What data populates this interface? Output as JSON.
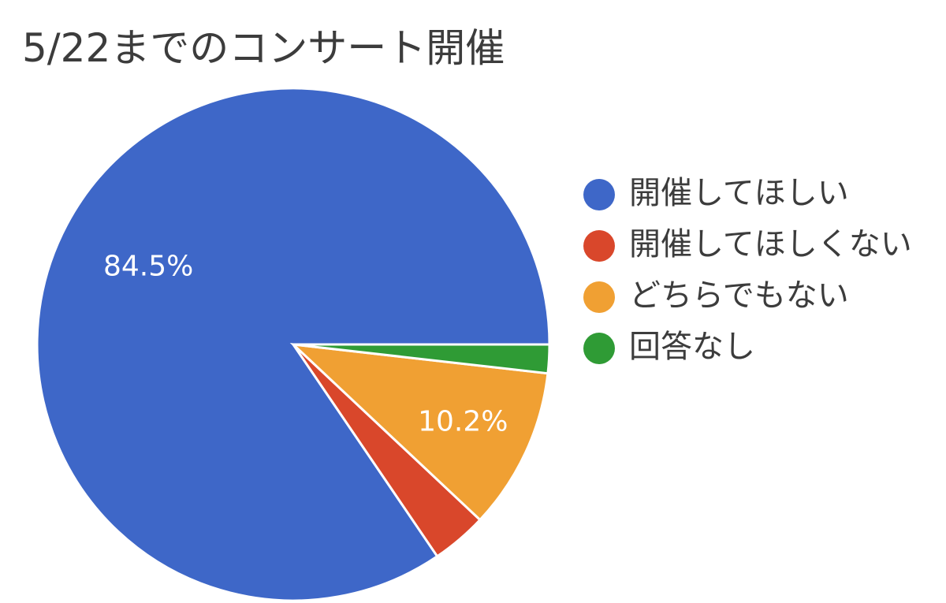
{
  "chart_data": {
    "type": "pie",
    "title": "5/22までのコンサート開催",
    "categories": [
      "開催してほしい",
      "開催してほしくない",
      "どちらでもない",
      "回答なし"
    ],
    "values": [
      84.5,
      3.5,
      10.2,
      1.8
    ],
    "colors": [
      "#3e67c8",
      "#d9472b",
      "#f0a033",
      "#2f9b35"
    ],
    "data_labels": [
      "84.5%",
      "",
      "10.2%",
      ""
    ],
    "legend_position": "right"
  }
}
